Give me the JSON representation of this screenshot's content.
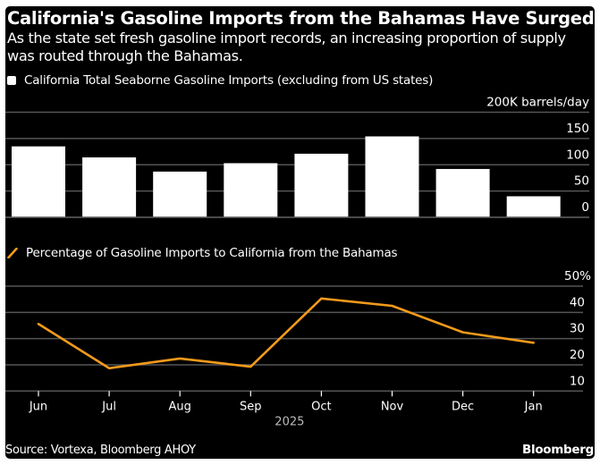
{
  "header": {
    "title": "California's Gasoline Imports from the Bahamas Have Surged",
    "subtitle": "As the state set fresh gasoline import records, an increasing proportion of supply was routed through the Bahamas."
  },
  "colors": {
    "background": "#000000",
    "bar": "#ffffff",
    "line": "#f39a1b",
    "grid": "#555555",
    "text": "#ffffff",
    "axis_year": "#bbbbbb"
  },
  "chart_data": [
    {
      "type": "bar",
      "legend": "California Total Seaborne Gasoline Imports (excluding from US states)",
      "unit_label": "200K barrels/day",
      "categories": [
        "Jun",
        "Jul",
        "Aug",
        "Sep",
        "Oct",
        "Nov",
        "Dec",
        "Jan"
      ],
      "values": [
        135,
        114,
        87,
        103,
        121,
        154,
        92,
        40
      ],
      "ylim": [
        0,
        200
      ],
      "yticks": [
        0,
        50,
        100,
        150,
        200
      ],
      "ytick_labels": [
        "0",
        "50",
        "100",
        "150",
        "200K barrels/day"
      ],
      "grid": true,
      "axis_side": "right"
    },
    {
      "type": "line",
      "legend": "Percentage of Gasoline Imports to California from the Bahamas",
      "categories": [
        "Jun",
        "Jul",
        "Aug",
        "Sep",
        "Oct",
        "Nov",
        "Dec",
        "Jan"
      ],
      "values": [
        35.6,
        18.7,
        22.4,
        19.3,
        45.3,
        42.5,
        32.4,
        28.4
      ],
      "ylim": [
        10,
        50
      ],
      "yticks": [
        10,
        20,
        30,
        40,
        50
      ],
      "ytick_labels": [
        "10",
        "20",
        "30",
        "40",
        "50%"
      ],
      "grid": true,
      "axis_side": "right",
      "xlabel": "2025"
    }
  ],
  "footer": {
    "source": "Source: Vortexa, Bloomberg AHOY",
    "brand": "Bloomberg"
  }
}
